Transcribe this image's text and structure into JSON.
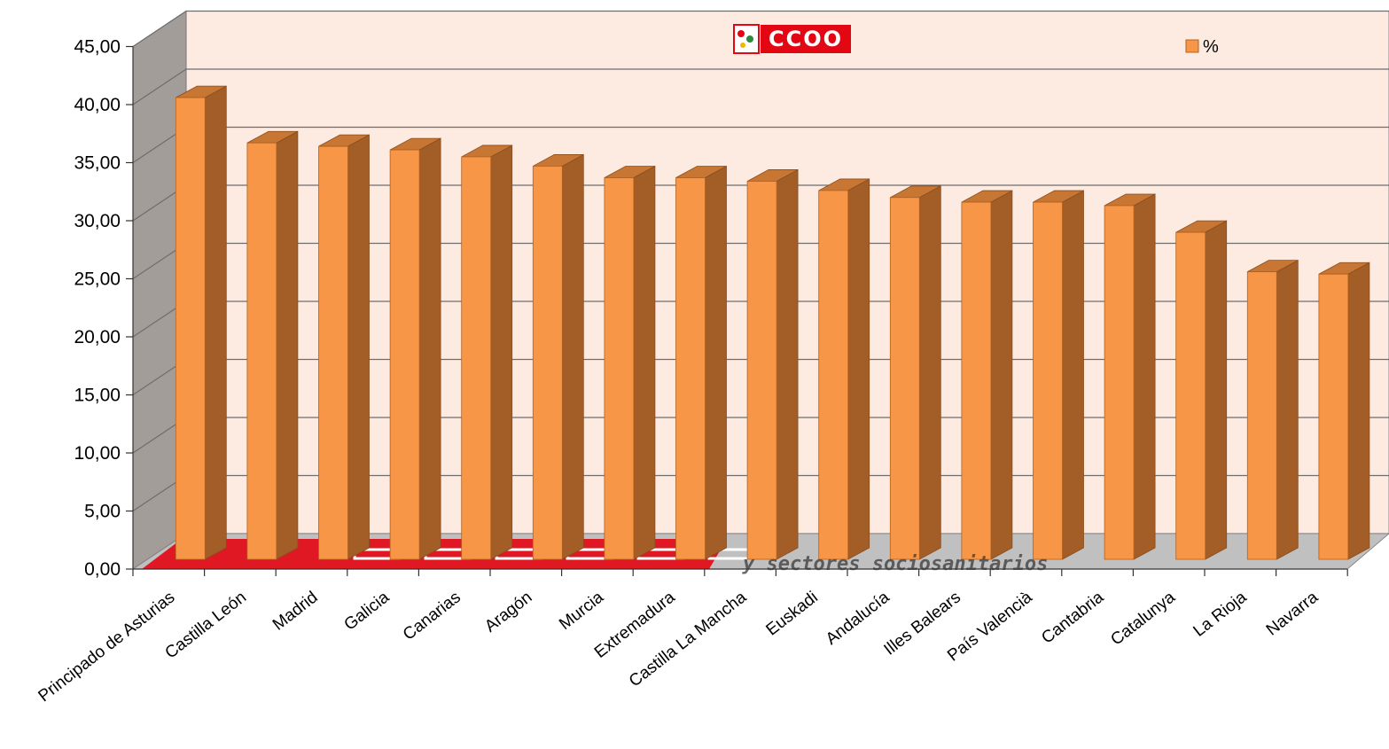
{
  "chart_data": {
    "type": "bar",
    "categories": [
      "Principado de Asturias",
      "Castilla León",
      "Madrid",
      "Galicia",
      "Canarias",
      "Aragón",
      "Murcia",
      "Extremadura",
      "Castilla La Mancha",
      "Euskadi",
      "Andalucía",
      "Illes Balears",
      "País Valencià",
      "Cantabria",
      "Catalunya",
      "La Rioja",
      "Navarra"
    ],
    "series": [
      {
        "name": "%",
        "values": [
          40.6,
          36.7,
          36.4,
          36.1,
          35.5,
          34.7,
          33.7,
          33.7,
          33.4,
          32.6,
          32.0,
          31.6,
          31.6,
          31.3,
          29.0,
          25.6,
          25.4
        ]
      }
    ],
    "ylim": [
      0,
      45
    ],
    "ytick_labels": [
      "0,00",
      "5,00",
      "10,00",
      "15,00",
      "20,00",
      "25,00",
      "30,00",
      "35,00",
      "40,00",
      "45,00"
    ],
    "legend": "top-right",
    "grid": true,
    "colors": {
      "bar_front": "#f79646",
      "bar_side": "#a35d27",
      "bar_top": "#c77633",
      "back_wall": "#fdeae0",
      "side_wall": "#a39d99",
      "floor": "#c0c0c0",
      "grid": "#6e6e6e",
      "logo_red": "#e30613"
    }
  },
  "logo": {
    "text": "CCOO"
  },
  "floor_watermark": {
    "text": "y sectores sociosanitarios"
  }
}
